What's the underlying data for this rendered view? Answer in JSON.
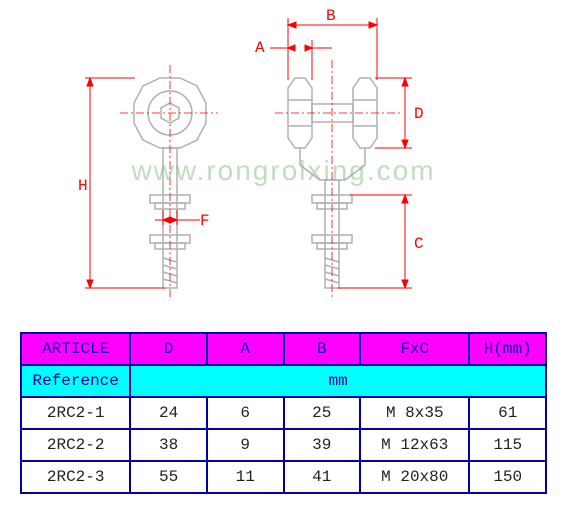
{
  "diagram": {
    "labels": {
      "A": "A",
      "B": "B",
      "C": "C",
      "D": "D",
      "F": "F",
      "H": "H"
    },
    "colors": {
      "dim_line": "#ff0000",
      "part_line": "#b0b0b0",
      "center_line": "#ff0000",
      "text": "#ff0000"
    },
    "watermark": "www.rongrolxing.com",
    "watermark_color": "#7fbf7f"
  },
  "table": {
    "header_bg": "#ff00ff",
    "ref_bg": "#00ffff",
    "border": "#0000aa",
    "columns": [
      "ARTICLE",
      "D",
      "A",
      "B",
      "FxC",
      "H(mm)"
    ],
    "ref_row": [
      "Reference",
      "mm"
    ],
    "rows": [
      [
        "2RC2-1",
        "24",
        "6",
        "25",
        "M 8x35",
        "61"
      ],
      [
        "2RC2-2",
        "38",
        "9",
        "39",
        "M 12x63",
        "115"
      ],
      [
        "2RC2-3",
        "55",
        "11",
        "41",
        "M 20x80",
        "150"
      ]
    ]
  }
}
